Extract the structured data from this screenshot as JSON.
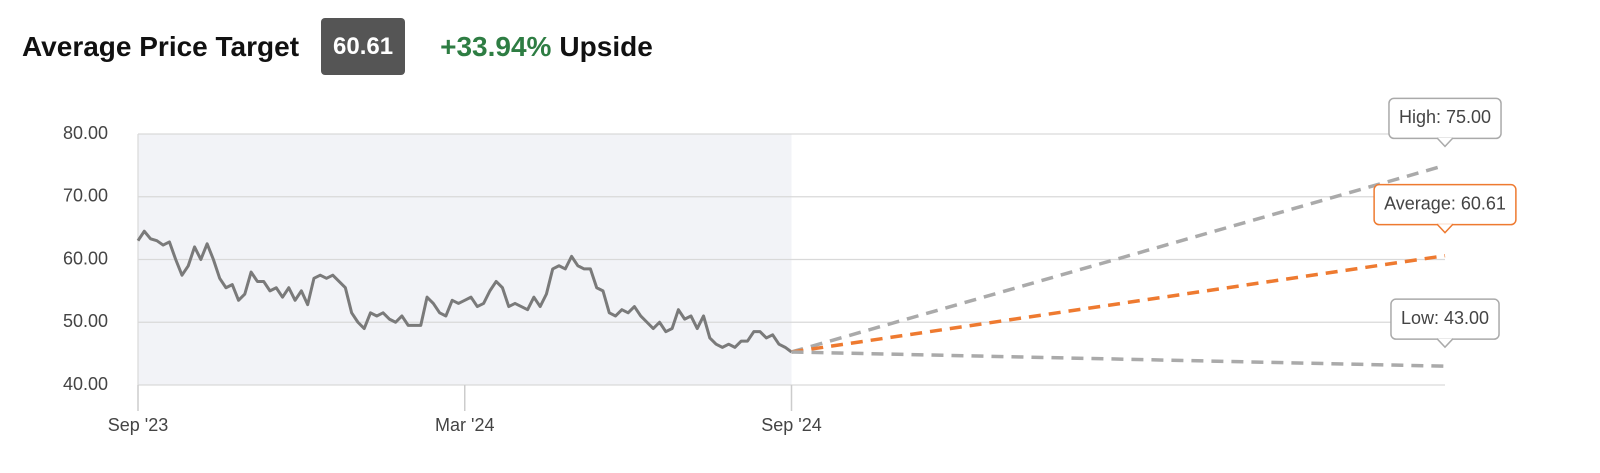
{
  "header": {
    "title": "Average Price Target",
    "price_target": "60.61",
    "upside": "+33.94%",
    "upside_label": "Upside"
  },
  "chart_data": {
    "type": "line",
    "values": [
      63,
      64.5,
      63.3,
      63,
      62.3,
      62.8,
      60,
      57.5,
      59,
      62,
      60,
      62.5,
      60,
      57,
      55.5,
      56,
      53.5,
      54.5,
      58,
      56.5,
      56.5,
      55,
      55.5,
      54,
      55.5,
      53.5,
      55,
      52.8,
      57,
      57.5,
      57,
      57.5,
      56.5,
      55.5,
      51.5,
      50,
      49,
      51.5,
      51,
      51.5,
      50.5,
      50,
      51,
      49.5,
      49.5,
      49.5,
      54,
      53,
      51.5,
      51,
      53.5,
      53,
      53.5,
      54,
      52.5,
      53,
      55,
      56.5,
      55.5,
      52.5,
      53,
      52.5,
      52,
      54,
      52.5,
      54.5,
      58.5,
      59,
      58.5,
      60.5,
      59,
      58.5,
      58.5,
      55.5,
      55,
      51.5,
      51,
      52,
      51.5,
      52.5,
      51,
      50,
      49,
      50,
      48.5,
      49,
      52,
      50.5,
      51,
      49,
      51,
      47.5,
      46.5,
      46,
      46.5,
      46,
      47,
      47,
      48.5,
      48.5,
      47.5,
      48,
      46.5,
      46,
      45.26
    ],
    "color": "#7a7a7a",
    "targets": {
      "values": [
        75,
        60.61,
        43
      ],
      "value_labels": [
        "High: 75.00",
        "Average: 60.61",
        "Low: 43.00"
      ],
      "colors": [
        "#aaaaaa",
        "#ee7a30",
        "#aaaaaa"
      ]
    },
    "xlim": [
      0,
      208
    ],
    "xticks": [
      {
        "value": 0,
        "label": "Sep '23"
      },
      {
        "value": 52,
        "label": "Mar '24"
      },
      {
        "value": 104,
        "label": "Sep '24"
      }
    ],
    "ylim": [
      40,
      80
    ],
    "yticks": [
      {
        "value": 40,
        "label": "40.00"
      },
      {
        "value": 50,
        "label": "50.00"
      },
      {
        "value": 60,
        "label": "60.00"
      },
      {
        "value": 70,
        "label": "70.00"
      },
      {
        "value": 80,
        "label": "80.00"
      }
    ],
    "grid": true
  }
}
